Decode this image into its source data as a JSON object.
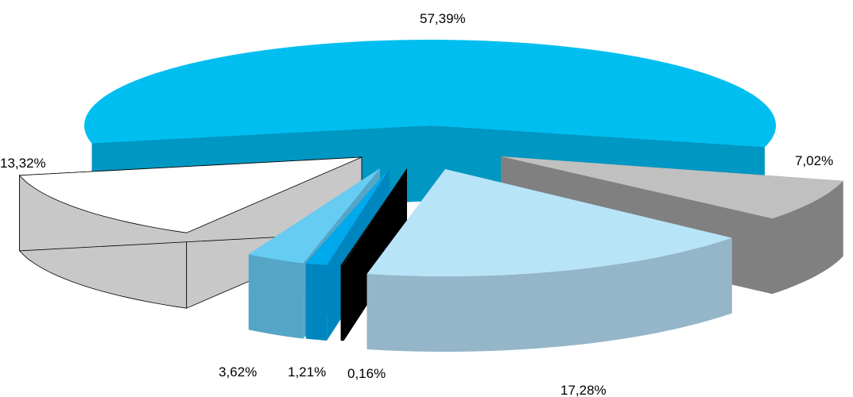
{
  "chart_data": {
    "type": "pie",
    "style": "3d-exploded",
    "slices": [
      {
        "label": "57,39%",
        "value": 57.39,
        "top_color": "#00BFF0",
        "side_color": "#0097C2"
      },
      {
        "label": "7,02%",
        "value": 7.02,
        "top_color": "#C0C0C0",
        "side_color": "#808080"
      },
      {
        "label": "17,28%",
        "value": 17.28,
        "top_color": "#B8E4F8",
        "side_color": "#94B6C8"
      },
      {
        "label": "0,16%",
        "value": 0.16,
        "top_color": "#111111",
        "side_color": "#000000"
      },
      {
        "label": "1,21%",
        "value": 1.21,
        "top_color": "#00A8EC",
        "side_color": "#0086BF"
      },
      {
        "label": "3,62%",
        "value": 3.62,
        "top_color": "#66CCF2",
        "side_color": "#55A6C6"
      },
      {
        "label": "13,32%",
        "value": 13.32,
        "top_color": "#FFFFFF",
        "side_color": "#C8C8C8"
      }
    ],
    "legend": "none",
    "grid": false
  }
}
